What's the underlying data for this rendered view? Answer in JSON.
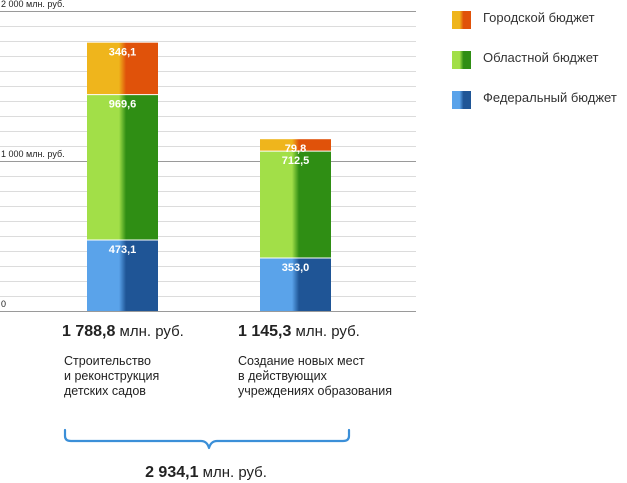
{
  "chart_data": {
    "type": "bar",
    "stacked": true,
    "categories": [
      "Строительство и реконструкция детских садов",
      "Создание новых мест в действующих учреждениях образования"
    ],
    "series": [
      {
        "name": "Федеральный бюджет",
        "values": [
          473.1,
          353.0
        ],
        "labels": [
          "473,1",
          "353,0"
        ],
        "color_light": "#5aa3ea",
        "color_dark": "#1f5596"
      },
      {
        "name": "Областной бюджет",
        "values": [
          969.6,
          712.5
        ],
        "labels": [
          "969,6",
          "712,5"
        ],
        "color_light": "#a2df48",
        "color_dark": "#2f8e14"
      },
      {
        "name": "Городской бюджет",
        "values": [
          346.1,
          79.8
        ],
        "labels": [
          "346,1",
          "79,8"
        ],
        "color_light": "#efb51c",
        "color_dark": "#e0520a"
      }
    ],
    "ylim": [
      0,
      2000
    ],
    "y_tick_labels": [
      {
        "value": 2000,
        "label": "2 000 млн. руб."
      },
      {
        "value": 1000,
        "label": "1 000 млн. руб."
      },
      {
        "value": 0,
        "label": "0"
      }
    ],
    "grid": true,
    "gridline_step": 100,
    "legend_position": "top-right"
  },
  "legend": [
    {
      "label": "Городской бюджет",
      "color_light": "#efb51c",
      "color_dark": "#e0520a"
    },
    {
      "label": "Областной бюджет",
      "color_light": "#a2df48",
      "color_dark": "#2f8e14"
    },
    {
      "label": "Федеральный бюджет",
      "color_light": "#5aa3ea",
      "color_dark": "#1f5596"
    }
  ],
  "totals": [
    {
      "value": "1 788,8",
      "unit": " млн. руб."
    },
    {
      "value": "1 145,3",
      "unit": " млн. руб."
    }
  ],
  "descriptions": [
    [
      "Строительство",
      "и реконструкция",
      "детских садов"
    ],
    [
      "Создание новых мест",
      "в действующих",
      "учреждениях образования"
    ]
  ],
  "grand_total": {
    "value": "2 934,1",
    "unit": " млн. руб."
  },
  "bracket_color": "#3b8fd8"
}
